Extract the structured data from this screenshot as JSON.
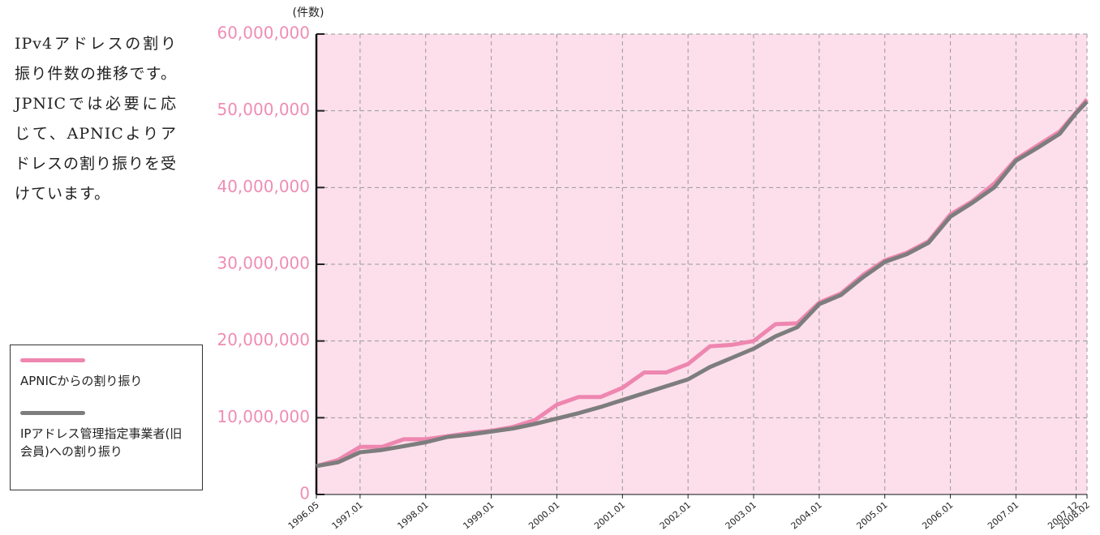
{
  "description": "IPv4アドレスの割り振り件数の推移です。JPNICでは必要に応じて、APNICよりアドレスの割り振りを受けています。",
  "chart_data": {
    "type": "line",
    "y_label": "(件数)",
    "x": [
      "1996.05",
      "1996.09",
      "1997.01",
      "1997.05",
      "1997.09",
      "1998.01",
      "1998.05",
      "1998.09",
      "1999.01",
      "1999.05",
      "1999.09",
      "2000.01",
      "2000.05",
      "2000.09",
      "2001.01",
      "2001.05",
      "2001.09",
      "2002.01",
      "2002.05",
      "2002.09",
      "2003.01",
      "2003.05",
      "2003.09",
      "2004.01",
      "2004.05",
      "2004.09",
      "2005.01",
      "2005.05",
      "2005.09",
      "2006.01",
      "2006.05",
      "2006.09",
      "2007.01",
      "2007.05",
      "2007.09",
      "2007.12",
      "2008.02"
    ],
    "xlim": [
      "1996.05",
      "2008.02"
    ],
    "xticks": [
      "1996.05",
      "1997.01",
      "1998.01",
      "1999.01",
      "2000.01",
      "2001.01",
      "2002.01",
      "2003.01",
      "2004.01",
      "2005.01",
      "2006.01",
      "2007.01",
      "2007.12",
      "2008.02"
    ],
    "ylim": [
      0,
      60000000
    ],
    "yticks": [
      0,
      {
        "value": 10000000,
        "label": "10,000,000"
      },
      {
        "value": 20000000,
        "label": "20,000,000"
      },
      {
        "value": 30000000,
        "label": "30,000,000"
      },
      {
        "value": 40000000,
        "label": "40,000,000"
      },
      {
        "value": 50000000,
        "label": "50,000,000"
      },
      {
        "value": 60000000,
        "label": "60,000,000"
      }
    ],
    "grid": true,
    "series": [
      {
        "name": "APNICからの割り振り",
        "color": "#ee86b0",
        "values": [
          3700000,
          4500000,
          6200000,
          6200000,
          7200000,
          7200000,
          7600000,
          8000000,
          8300000,
          8800000,
          9700000,
          11700000,
          12700000,
          12700000,
          13900000,
          15900000,
          15900000,
          17000000,
          19300000,
          19500000,
          20000000,
          22200000,
          22300000,
          25000000,
          26200000,
          28600000,
          30500000,
          31500000,
          33000000,
          36500000,
          38200000,
          40500000,
          43700000,
          45500000,
          47300000,
          49800000,
          51500000
        ]
      },
      {
        "name": "IPアドレス管理指定事業者(旧会員)への割り振り",
        "color": "#7d7d7d",
        "values": [
          3700000,
          4200000,
          5500000,
          5800000,
          6300000,
          6800000,
          7500000,
          7800000,
          8200000,
          8600000,
          9200000,
          9900000,
          10600000,
          11400000,
          12300000,
          13200000,
          14100000,
          15000000,
          16600000,
          17800000,
          19000000,
          20600000,
          21800000,
          24800000,
          26000000,
          28300000,
          30300000,
          31300000,
          32800000,
          36200000,
          38000000,
          40000000,
          43500000,
          45200000,
          47000000,
          49700000,
          51200000
        ]
      }
    ]
  }
}
